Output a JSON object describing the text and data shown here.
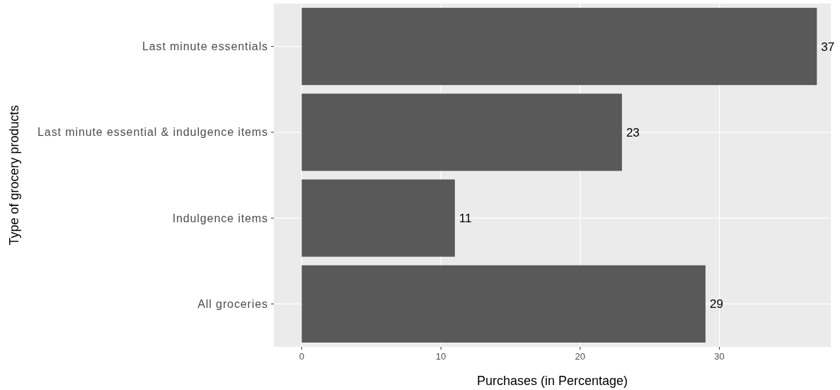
{
  "chart_data": {
    "type": "bar",
    "orientation": "horizontal",
    "xlabel": "Purchases (in Percentage)",
    "ylabel": "Type of grocery products",
    "categories": [
      "Last minute essentials",
      "Last minute essential & indulgence items",
      "Indulgence items",
      "All groceries"
    ],
    "values": [
      37,
      23,
      11,
      29
    ],
    "color": "#595959",
    "xlim": [
      -2,
      38
    ],
    "xticks": [
      0,
      10,
      20,
      30
    ],
    "grid": true,
    "data_labels": true
  }
}
